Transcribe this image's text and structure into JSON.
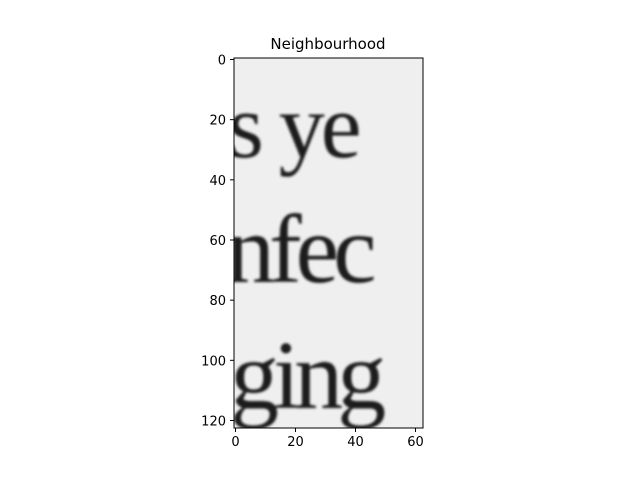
{
  "title": "Neighbourhood",
  "image_text_lines": [
    "s ye",
    "nfec",
    "ging"
  ],
  "axes": {
    "x_ticks": [
      "0",
      "20",
      "40",
      "60"
    ],
    "y_ticks": [
      "0",
      "20",
      "40",
      "60",
      "80",
      "100",
      "120"
    ],
    "x_range": [
      0,
      63
    ],
    "y_range": [
      0,
      123
    ],
    "y_inverted": true
  },
  "colors": {
    "background": "#efefef",
    "ink": "#1c1c1c",
    "frame": "#000000"
  }
}
